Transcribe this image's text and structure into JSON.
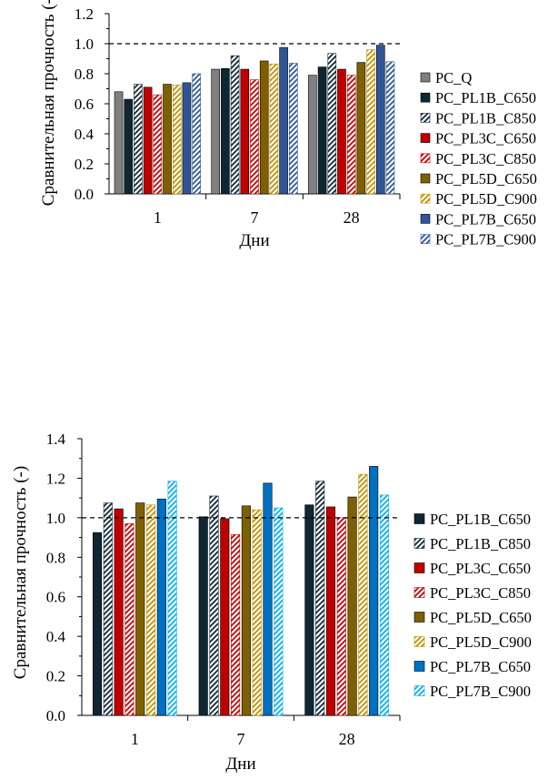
{
  "chart_data": [
    {
      "type": "bar",
      "title": "",
      "xlabel": "Дни",
      "ylabel": "Сравнительная прочность (-)",
      "categories": [
        "1",
        "7",
        "28"
      ],
      "ylim": [
        0,
        1.2
      ],
      "yticks": [
        "0.0",
        "0.2",
        "0.4",
        "0.6",
        "0.8",
        "1.0",
        "1.2"
      ],
      "reference_line": 1.0,
      "grid": false,
      "legend_position": "right",
      "series": [
        {
          "name": "PC_Q",
          "values": [
            0.68,
            0.83,
            0.79
          ],
          "color": "#808080",
          "pattern": "solid"
        },
        {
          "name": "PC_PL1B_C650",
          "values": [
            0.63,
            0.835,
            0.845
          ],
          "color": "#0f2733",
          "pattern": "solid"
        },
        {
          "name": "PC_PL1B_C850",
          "values": [
            0.73,
            0.92,
            0.935
          ],
          "color": "#0f2733",
          "pattern": "hatch"
        },
        {
          "name": "PC_PL3C_C650",
          "values": [
            0.71,
            0.83,
            0.83
          ],
          "color": "#c00000",
          "pattern": "solid"
        },
        {
          "name": "PC_PL3C_C850",
          "values": [
            0.66,
            0.76,
            0.79
          ],
          "color": "#c00000",
          "pattern": "hatch"
        },
        {
          "name": "PC_PL5D_C650",
          "values": [
            0.73,
            0.885,
            0.875
          ],
          "color": "#7f6000",
          "pattern": "solid"
        },
        {
          "name": "PC_PL5D_C900",
          "values": [
            0.725,
            0.865,
            0.96
          ],
          "color": "#bf9000",
          "pattern": "hatch"
        },
        {
          "name": "PC_PL7B_C650",
          "values": [
            0.74,
            0.975,
            0.99
          ],
          "color": "#2f5597",
          "pattern": "solid"
        },
        {
          "name": "PC_PL7B_C900",
          "values": [
            0.8,
            0.87,
            0.88
          ],
          "color": "#2f5597",
          "pattern": "hatch"
        }
      ]
    },
    {
      "type": "bar",
      "title": "",
      "xlabel": "Дни",
      "ylabel": "Сравнительная прочность (-)",
      "categories": [
        "1",
        "7",
        "28"
      ],
      "ylim": [
        0,
        1.4
      ],
      "yticks": [
        "0.0",
        "0.2",
        "0.4",
        "0.6",
        "0.8",
        "1.0",
        "1.2",
        "1.4"
      ],
      "reference_line": 1.0,
      "grid": false,
      "legend_position": "right",
      "series": [
        {
          "name": "PC_PL1B_C650",
          "values": [
            0.925,
            1.005,
            1.065
          ],
          "color": "#0f2733",
          "pattern": "solid"
        },
        {
          "name": "PC_PL1B_C850",
          "values": [
            1.075,
            1.11,
            1.185
          ],
          "color": "#0f2733",
          "pattern": "hatch"
        },
        {
          "name": "PC_PL3C_C650",
          "values": [
            1.045,
            0.995,
            1.055
          ],
          "color": "#c00000",
          "pattern": "solid"
        },
        {
          "name": "PC_PL3C_C850",
          "values": [
            0.97,
            0.915,
            1.0
          ],
          "color": "#c00000",
          "pattern": "hatch"
        },
        {
          "name": "PC_PL5D_C650",
          "values": [
            1.075,
            1.06,
            1.105
          ],
          "color": "#7f6000",
          "pattern": "solid"
        },
        {
          "name": "PC_PL5D_C900",
          "values": [
            1.065,
            1.04,
            1.22
          ],
          "color": "#bf9000",
          "pattern": "hatch"
        },
        {
          "name": "PC_PL7B_C650",
          "values": [
            1.095,
            1.175,
            1.26
          ],
          "color": "#0070c0",
          "pattern": "solid"
        },
        {
          "name": "PC_PL7B_C900",
          "values": [
            1.185,
            1.05,
            1.115
          ],
          "color": "#00b0f0",
          "pattern": "hatch"
        }
      ]
    }
  ]
}
